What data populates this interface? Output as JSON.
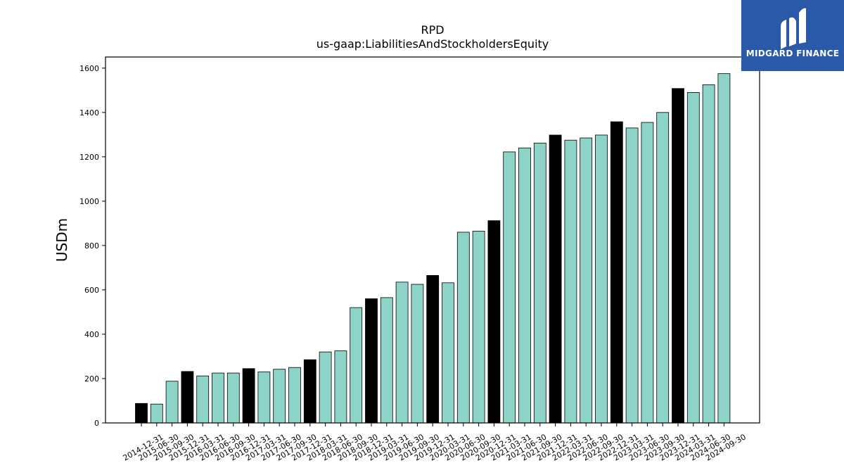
{
  "logo": {
    "text": "MIDGARD FINANCE",
    "color": "#2a59a8"
  },
  "chart_data": {
    "type": "bar",
    "title": "RPD",
    "subtitle": "us-gaap:LiabilitiesAndStockholdersEquity",
    "xlabel": "",
    "ylabel": "USDm",
    "ylim": [
      0,
      1650
    ],
    "yticks": [
      0,
      200,
      400,
      600,
      800,
      1000,
      1200,
      1400,
      1600
    ],
    "grid": false,
    "colors": {
      "quarter": "#8dd3c7",
      "year_end": "#000000",
      "edge": "#000000"
    },
    "categories": [
      "2014-12-31",
      "2015-06-30",
      "2015-09-30",
      "2015-12-31",
      "2016-03-31",
      "2016-06-30",
      "2016-09-30",
      "2016-12-31",
      "2017-03-31",
      "2017-06-30",
      "2017-09-30",
      "2017-12-31",
      "2018-03-31",
      "2018-06-30",
      "2018-09-30",
      "2018-12-31",
      "2019-03-31",
      "2019-06-30",
      "2019-09-30",
      "2019-12-31",
      "2020-03-31",
      "2020-06-30",
      "2020-09-30",
      "2020-12-31",
      "2021-03-31",
      "2021-06-30",
      "2021-09-30",
      "2021-12-31",
      "2022-03-31",
      "2022-06-30",
      "2022-09-30",
      "2022-12-31",
      "2023-03-31",
      "2023-06-30",
      "2023-09-30",
      "2023-12-31",
      "2024-03-31",
      "2024-06-30",
      "2024-09-30"
    ],
    "values": [
      88,
      85,
      188,
      232,
      212,
      225,
      225,
      245,
      230,
      242,
      250,
      285,
      320,
      325,
      520,
      560,
      565,
      635,
      625,
      665,
      632,
      860,
      865,
      912,
      1222,
      1240,
      1262,
      1298,
      1275,
      1285,
      1298,
      1358,
      1330,
      1355,
      1400,
      1508,
      1490,
      1525,
      1575
    ],
    "year_end": [
      true,
      false,
      false,
      true,
      false,
      false,
      false,
      true,
      false,
      false,
      false,
      true,
      false,
      false,
      false,
      true,
      false,
      false,
      false,
      true,
      false,
      false,
      false,
      true,
      false,
      false,
      false,
      true,
      false,
      false,
      false,
      true,
      false,
      false,
      false,
      true,
      false,
      false,
      false
    ]
  }
}
